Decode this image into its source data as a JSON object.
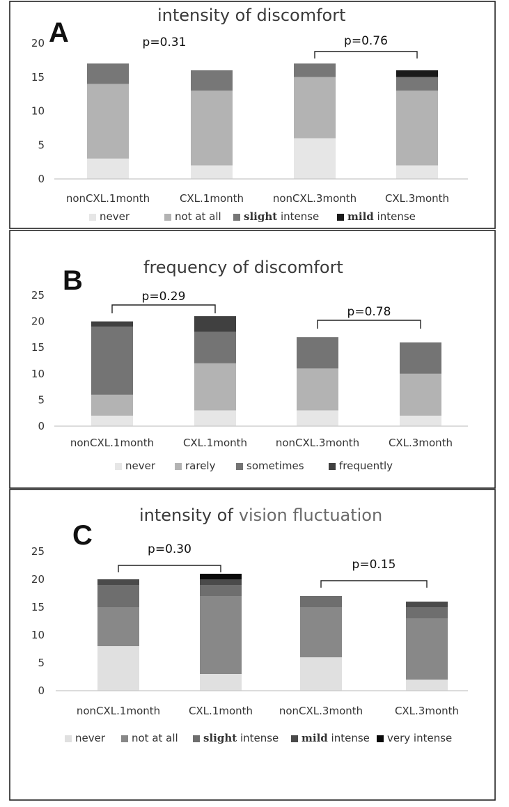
{
  "chart_data": [
    {
      "type": "bar",
      "stacked": true,
      "panel_letter": "A",
      "title": "intensity of discomfort",
      "categories": [
        "nonCXL.1month",
        "CXL.1month",
        "nonCXL.3month",
        "CXL.3month"
      ],
      "ylim": [
        0,
        20
      ],
      "yticks": [
        0,
        5,
        10,
        15,
        20
      ],
      "grid": false,
      "legend_position": "bottom",
      "series": [
        {
          "name": "never",
          "color": "#e6e6e6",
          "values": [
            3,
            2,
            6,
            2
          ]
        },
        {
          "name": "not at all",
          "color": "#b3b3b3",
          "values": [
            11,
            11,
            9,
            11
          ]
        },
        {
          "name": "slight intense",
          "color": "#777777",
          "values": [
            3,
            3,
            2,
            2
          ]
        },
        {
          "name": "mild intense",
          "color": "#1a1a1a",
          "values": [
            0,
            0,
            0,
            1
          ]
        }
      ],
      "legend_bold_words": {
        "slight intense": "slight",
        "mild intense": "mild"
      },
      "annotations": [
        {
          "text": "p=0.31",
          "bracket": false,
          "anchor_category": 0
        },
        {
          "text": "p=0.76",
          "bracket": true,
          "from_category": 2,
          "to_category": 3
        }
      ]
    },
    {
      "type": "bar",
      "stacked": true,
      "panel_letter": "B",
      "title": "frequency of discomfort",
      "categories": [
        "nonCXL.1month",
        "CXL.1month",
        "nonCXL.3month",
        "CXL.3month"
      ],
      "ylim": [
        0,
        25
      ],
      "yticks": [
        0,
        5,
        10,
        15,
        20,
        25
      ],
      "grid": false,
      "legend_position": "bottom",
      "series": [
        {
          "name": "never",
          "color": "#e6e6e6",
          "values": [
            2,
            3,
            3,
            2
          ]
        },
        {
          "name": "rarely",
          "color": "#b3b3b3",
          "values": [
            4,
            9,
            8,
            8
          ]
        },
        {
          "name": "sometimes",
          "color": "#747474",
          "values": [
            13,
            6,
            6,
            6
          ]
        },
        {
          "name": "frequently",
          "color": "#404040",
          "values": [
            1,
            3,
            0,
            0
          ]
        }
      ],
      "legend_bold_words": {},
      "annotations": [
        {
          "text": "p=0.29",
          "bracket": true,
          "from_category": 0,
          "to_category": 1
        },
        {
          "text": "p=0.78",
          "bracket": true,
          "from_category": 2,
          "to_category": 3
        }
      ]
    },
    {
      "type": "bar",
      "stacked": true,
      "panel_letter": "C",
      "title": "intensity of",
      "title_suffix": "vision fluctuation",
      "categories": [
        "nonCXL.1month",
        "CXL.1month",
        "nonCXL.3month",
        "CXL.3month"
      ],
      "ylim": [
        0,
        25
      ],
      "yticks": [
        0,
        5,
        10,
        15,
        20,
        25
      ],
      "grid": false,
      "legend_position": "bottom",
      "series": [
        {
          "name": "never",
          "color": "#e0e0e0",
          "values": [
            8,
            3,
            6,
            2
          ]
        },
        {
          "name": "not at all",
          "color": "#888888",
          "values": [
            7,
            14,
            9,
            11
          ]
        },
        {
          "name": "slight intense",
          "color": "#6e6e6e",
          "values": [
            4,
            2,
            2,
            2
          ]
        },
        {
          "name": "mild intense",
          "color": "#4a4a4a",
          "values": [
            1,
            1,
            0,
            1
          ]
        },
        {
          "name": "very intense",
          "color": "#0a0a0a",
          "values": [
            0,
            1,
            0,
            0
          ]
        }
      ],
      "legend_bold_words": {
        "slight intense": "slight",
        "mild intense": "mild"
      },
      "annotations": [
        {
          "text": "p=0.30",
          "bracket": true,
          "from_category": 0,
          "to_category": 1
        },
        {
          "text": "p=0.15",
          "bracket": true,
          "from_category": 2,
          "to_category": 3
        }
      ]
    }
  ]
}
